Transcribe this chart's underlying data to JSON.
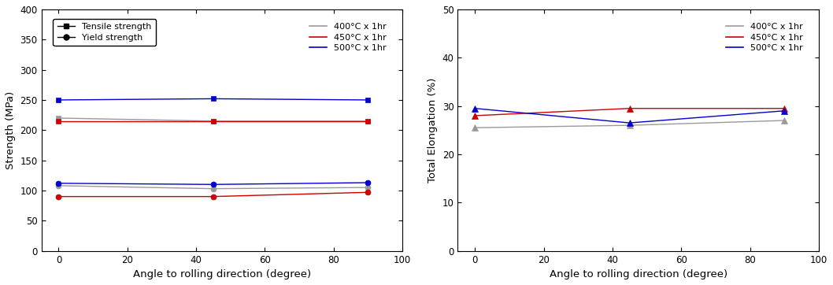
{
  "angles": [
    0,
    45,
    90
  ],
  "tensile": {
    "gray": [
      220,
      215,
      215
    ],
    "red": [
      215,
      215,
      215
    ],
    "blue": [
      250,
      252,
      250
    ]
  },
  "yield": {
    "gray": [
      108,
      103,
      105
    ],
    "red": [
      90,
      90,
      97
    ],
    "blue": [
      112,
      110,
      113
    ]
  },
  "elongation": {
    "gray": [
      25.5,
      26.0,
      27.0
    ],
    "red": [
      28.0,
      29.5,
      29.5
    ],
    "blue": [
      29.5,
      26.5,
      29.0
    ]
  },
  "colors": {
    "gray": "#999999",
    "red": "#cc0000",
    "blue": "#0000cc"
  },
  "legend_temps": [
    "400°C x 1hr",
    "450°C x 1hr",
    "500°C x 1hr"
  ],
  "left_ylabel": "Strength (MPa)",
  "right_ylabel": "Total Elongation (%)",
  "xlabel": "Angle to rolling direction (degree)",
  "left_ylim": [
    0,
    400
  ],
  "right_ylim": [
    0,
    50
  ],
  "xlim": [
    -5,
    100
  ],
  "left_yticks": [
    0,
    50,
    100,
    150,
    200,
    250,
    300,
    350,
    400
  ],
  "right_yticks": [
    0,
    10,
    20,
    30,
    40,
    50
  ],
  "xticks": [
    0,
    20,
    40,
    60,
    80,
    100
  ]
}
